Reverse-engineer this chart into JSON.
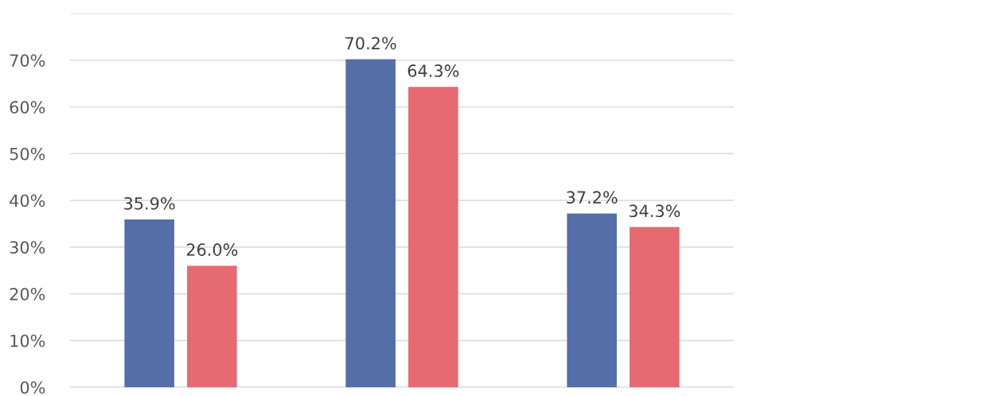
{
  "chart_data": {
    "type": "bar",
    "categories": [
      null,
      null,
      null
    ],
    "series": [
      {
        "color": "#536ea8",
        "values": [
          35.9,
          70.2,
          37.2
        ]
      },
      {
        "color": "#e66a70",
        "values": [
          26.0,
          64.3,
          34.3
        ]
      }
    ],
    "value_labels": [
      [
        "35.9%",
        "70.2%",
        "37.2%"
      ],
      [
        "26.0%",
        "64.3%",
        "34.3%"
      ]
    ],
    "ylim": [
      0,
      80
    ],
    "yticks": [
      {
        "value": 0,
        "label": "0%"
      },
      {
        "value": 10,
        "label": "10%"
      },
      {
        "value": 20,
        "label": "20%"
      },
      {
        "value": 30,
        "label": "30%"
      },
      {
        "value": 40,
        "label": "40%"
      },
      {
        "value": 50,
        "label": "50%"
      },
      {
        "value": 60,
        "label": "60%"
      },
      {
        "value": 70,
        "label": "70%"
      },
      {
        "value": 80,
        "label": null
      }
    ],
    "grid": "y",
    "legend": false
  }
}
